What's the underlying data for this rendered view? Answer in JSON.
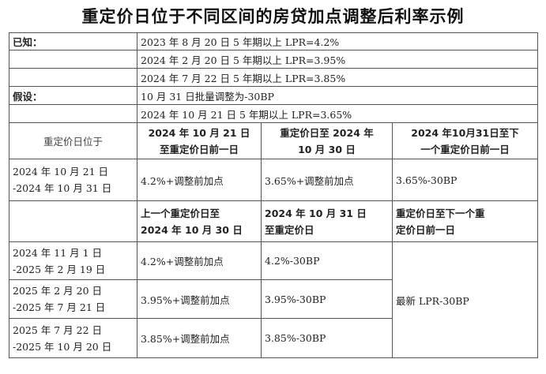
{
  "title": "重定价日位于不同区间的房贷加点调整后利率示例",
  "known": {
    "label": "已知：",
    "lines": [
      "2023 年 8 月 20 日 5 年期以上 LPR=4.2%",
      "2024 年 2 月 20 日 5 年期以上 LPR=3.95%",
      "2024 年 7 月 22 日 5 年期以上 LPR=3.85%"
    ]
  },
  "assume": {
    "label": "假设：",
    "lines": [
      "10 月 31 日批量调整为-30BP",
      "2024 年 10 月 21 日 5 年期以上 LPR=3.65%"
    ]
  },
  "table1": {
    "header": {
      "col0": "重定价日位于",
      "col1_l1": "2024 年 10 月 21 日",
      "col1_l2": "至重定价日前一日",
      "col2_l1": "重定价日至 2024 年",
      "col2_l2": "10 月 30 日",
      "col3_l1": "2024 年10月31日至下",
      "col3_l2": "一个重定价日前一日"
    },
    "row": {
      "period_l1": "2024 年 10 月 21 日",
      "period_l2": "-2024 年 10 月 31 日",
      "c1": "4.2%+调整前加点",
      "c2": "3.65%+调整前加点",
      "c3": "3.65%-30BP"
    }
  },
  "table2": {
    "header": {
      "col1_l1": "上一个重定价日至",
      "col1_l2": "2024 年 10 月 30 日",
      "col2_l1": "2024 年 10 月 31 日",
      "col2_l2": "至重定价日",
      "col3_l1": "重定价日至下一个重",
      "col3_l2": "定价日前一日"
    },
    "rows": [
      {
        "period_l1": "2024 年 11 月 1 日",
        "period_l2": "-2025 年 2 月 19 日",
        "c1": "4.2%+调整前加点",
        "c2": "4.2%-30BP"
      },
      {
        "period_l1": "2025 年 2 月 20 日",
        "period_l2": "-2025 年 7 月 21 日",
        "c1": "3.95%+调整前加点",
        "c2": "3.95%-30BP"
      },
      {
        "period_l1": "2025 年 7 月 22 日",
        "period_l2": "-2025 年 10 月 20 日",
        "c1": "3.85%+调整前加点",
        "c2": "3.85%-30BP"
      }
    ],
    "merged_c3": "最新 LPR-30BP"
  }
}
